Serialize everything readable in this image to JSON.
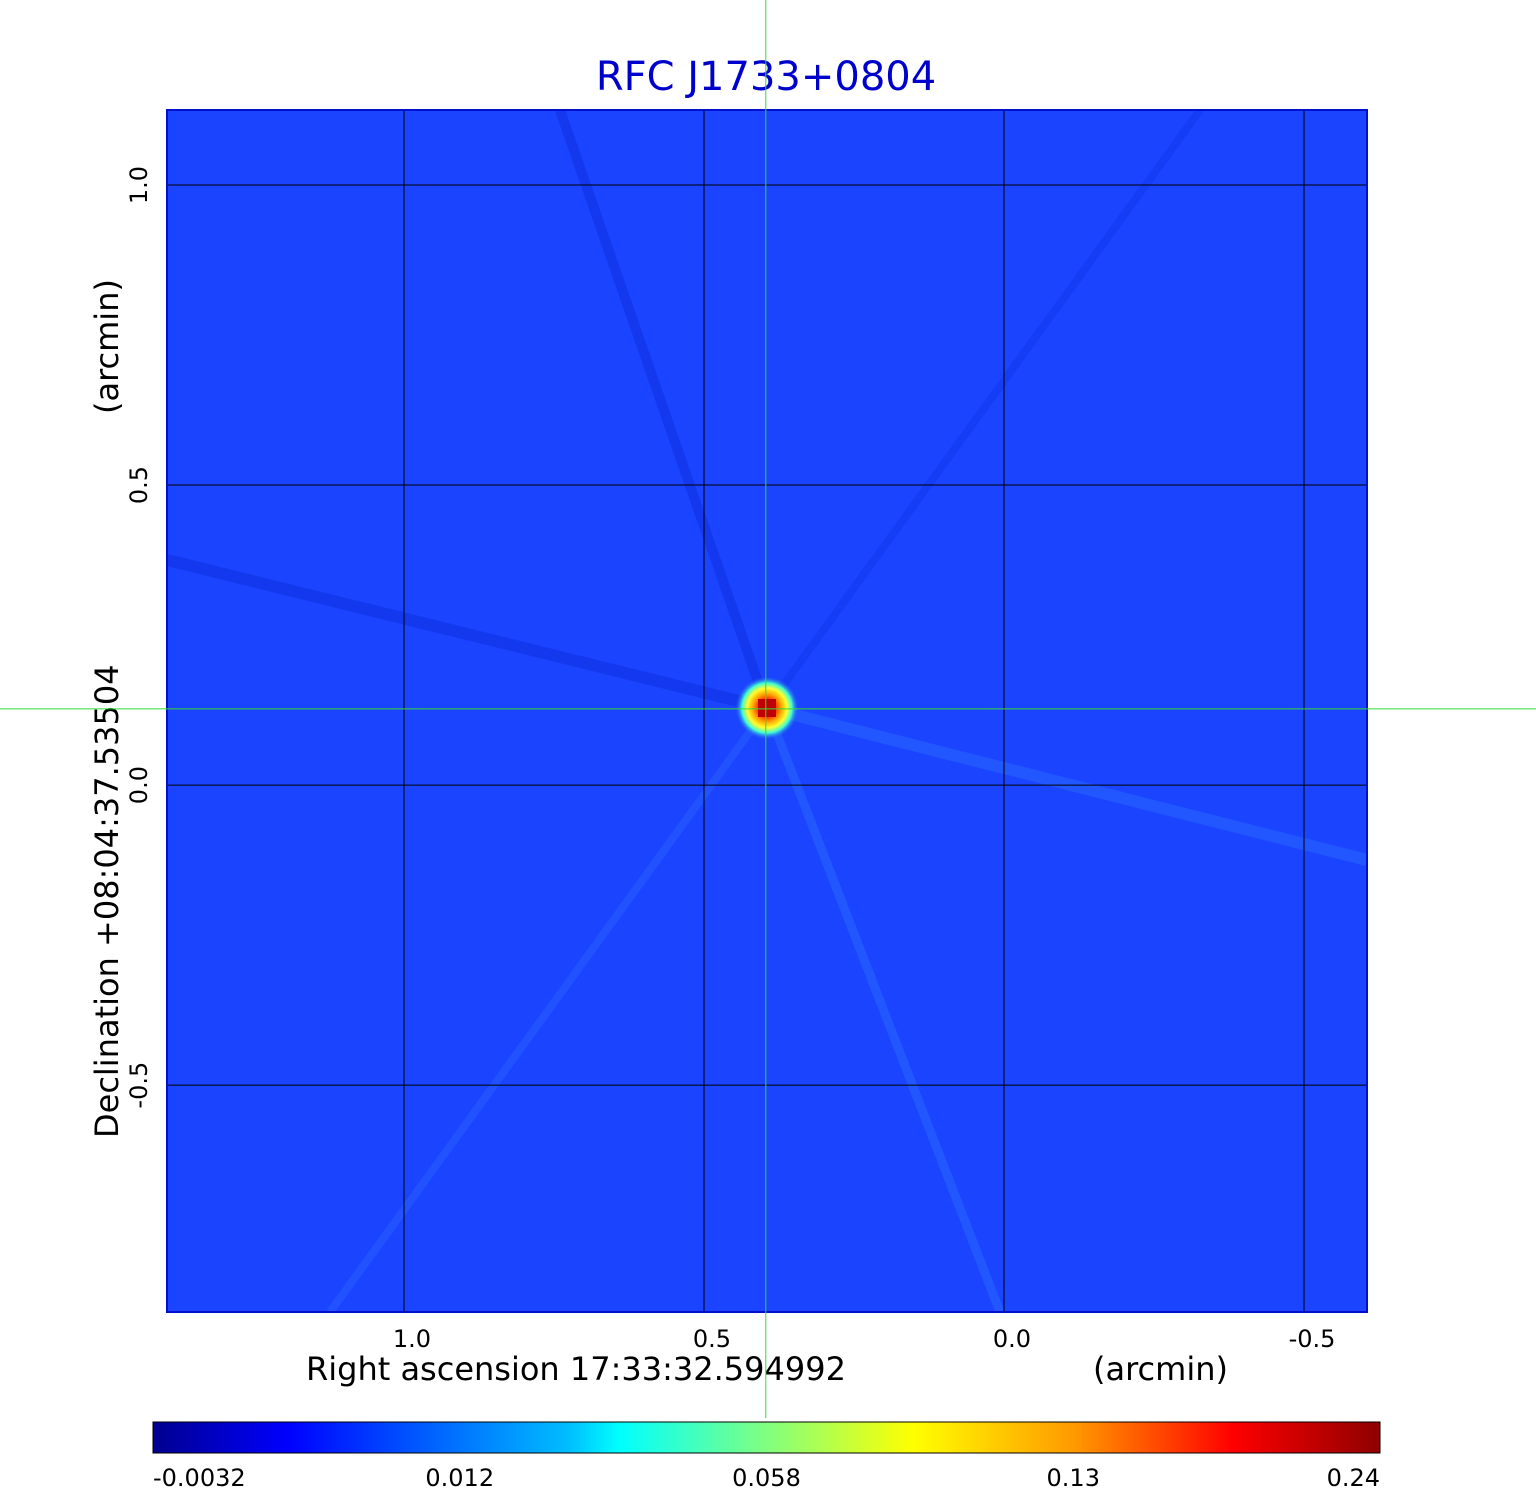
{
  "chart_data": {
    "type": "heatmap",
    "title": "RFC J1733+0804",
    "xlabel": "Right ascension  17:33:32.594992",
    "xunit": "(arcmin)",
    "ylabel": "Declination  +08:04:37.53504",
    "yunit": "(arcmin)",
    "x_ticks": [
      {
        "value": 1.0,
        "label": "1.0"
      },
      {
        "value": 0.5,
        "label": "0.5"
      },
      {
        "value": 0.0,
        "label": "0.0"
      },
      {
        "value": -0.5,
        "label": "-0.5"
      }
    ],
    "y_ticks": [
      {
        "value": 1.0,
        "label": "1.0"
      },
      {
        "value": 0.5,
        "label": "0.5"
      },
      {
        "value": 0.0,
        "label": "0.0"
      },
      {
        "value": -0.5,
        "label": "-0.5"
      }
    ],
    "xlim": [
      1.395,
      -0.605
    ],
    "ylim": [
      -0.878,
      1.125
    ],
    "grid": true,
    "crosshair": {
      "x": 0.397,
      "y": 0.127
    },
    "source_peak": {
      "x": 0.397,
      "y": 0.127,
      "value": 0.24
    },
    "colorbar": {
      "colormap": "jet",
      "ticks": [
        {
          "value": -0.0032,
          "label": "-0.0032"
        },
        {
          "value": 0.012,
          "label": "0.012"
        },
        {
          "value": 0.058,
          "label": "0.058"
        },
        {
          "value": 0.13,
          "label": "0.13"
        },
        {
          "value": 0.24,
          "label": "0.24"
        }
      ]
    },
    "background_color": "#1a44ff",
    "grid_color": "#000000",
    "crosshair_color": "#33dd33"
  }
}
